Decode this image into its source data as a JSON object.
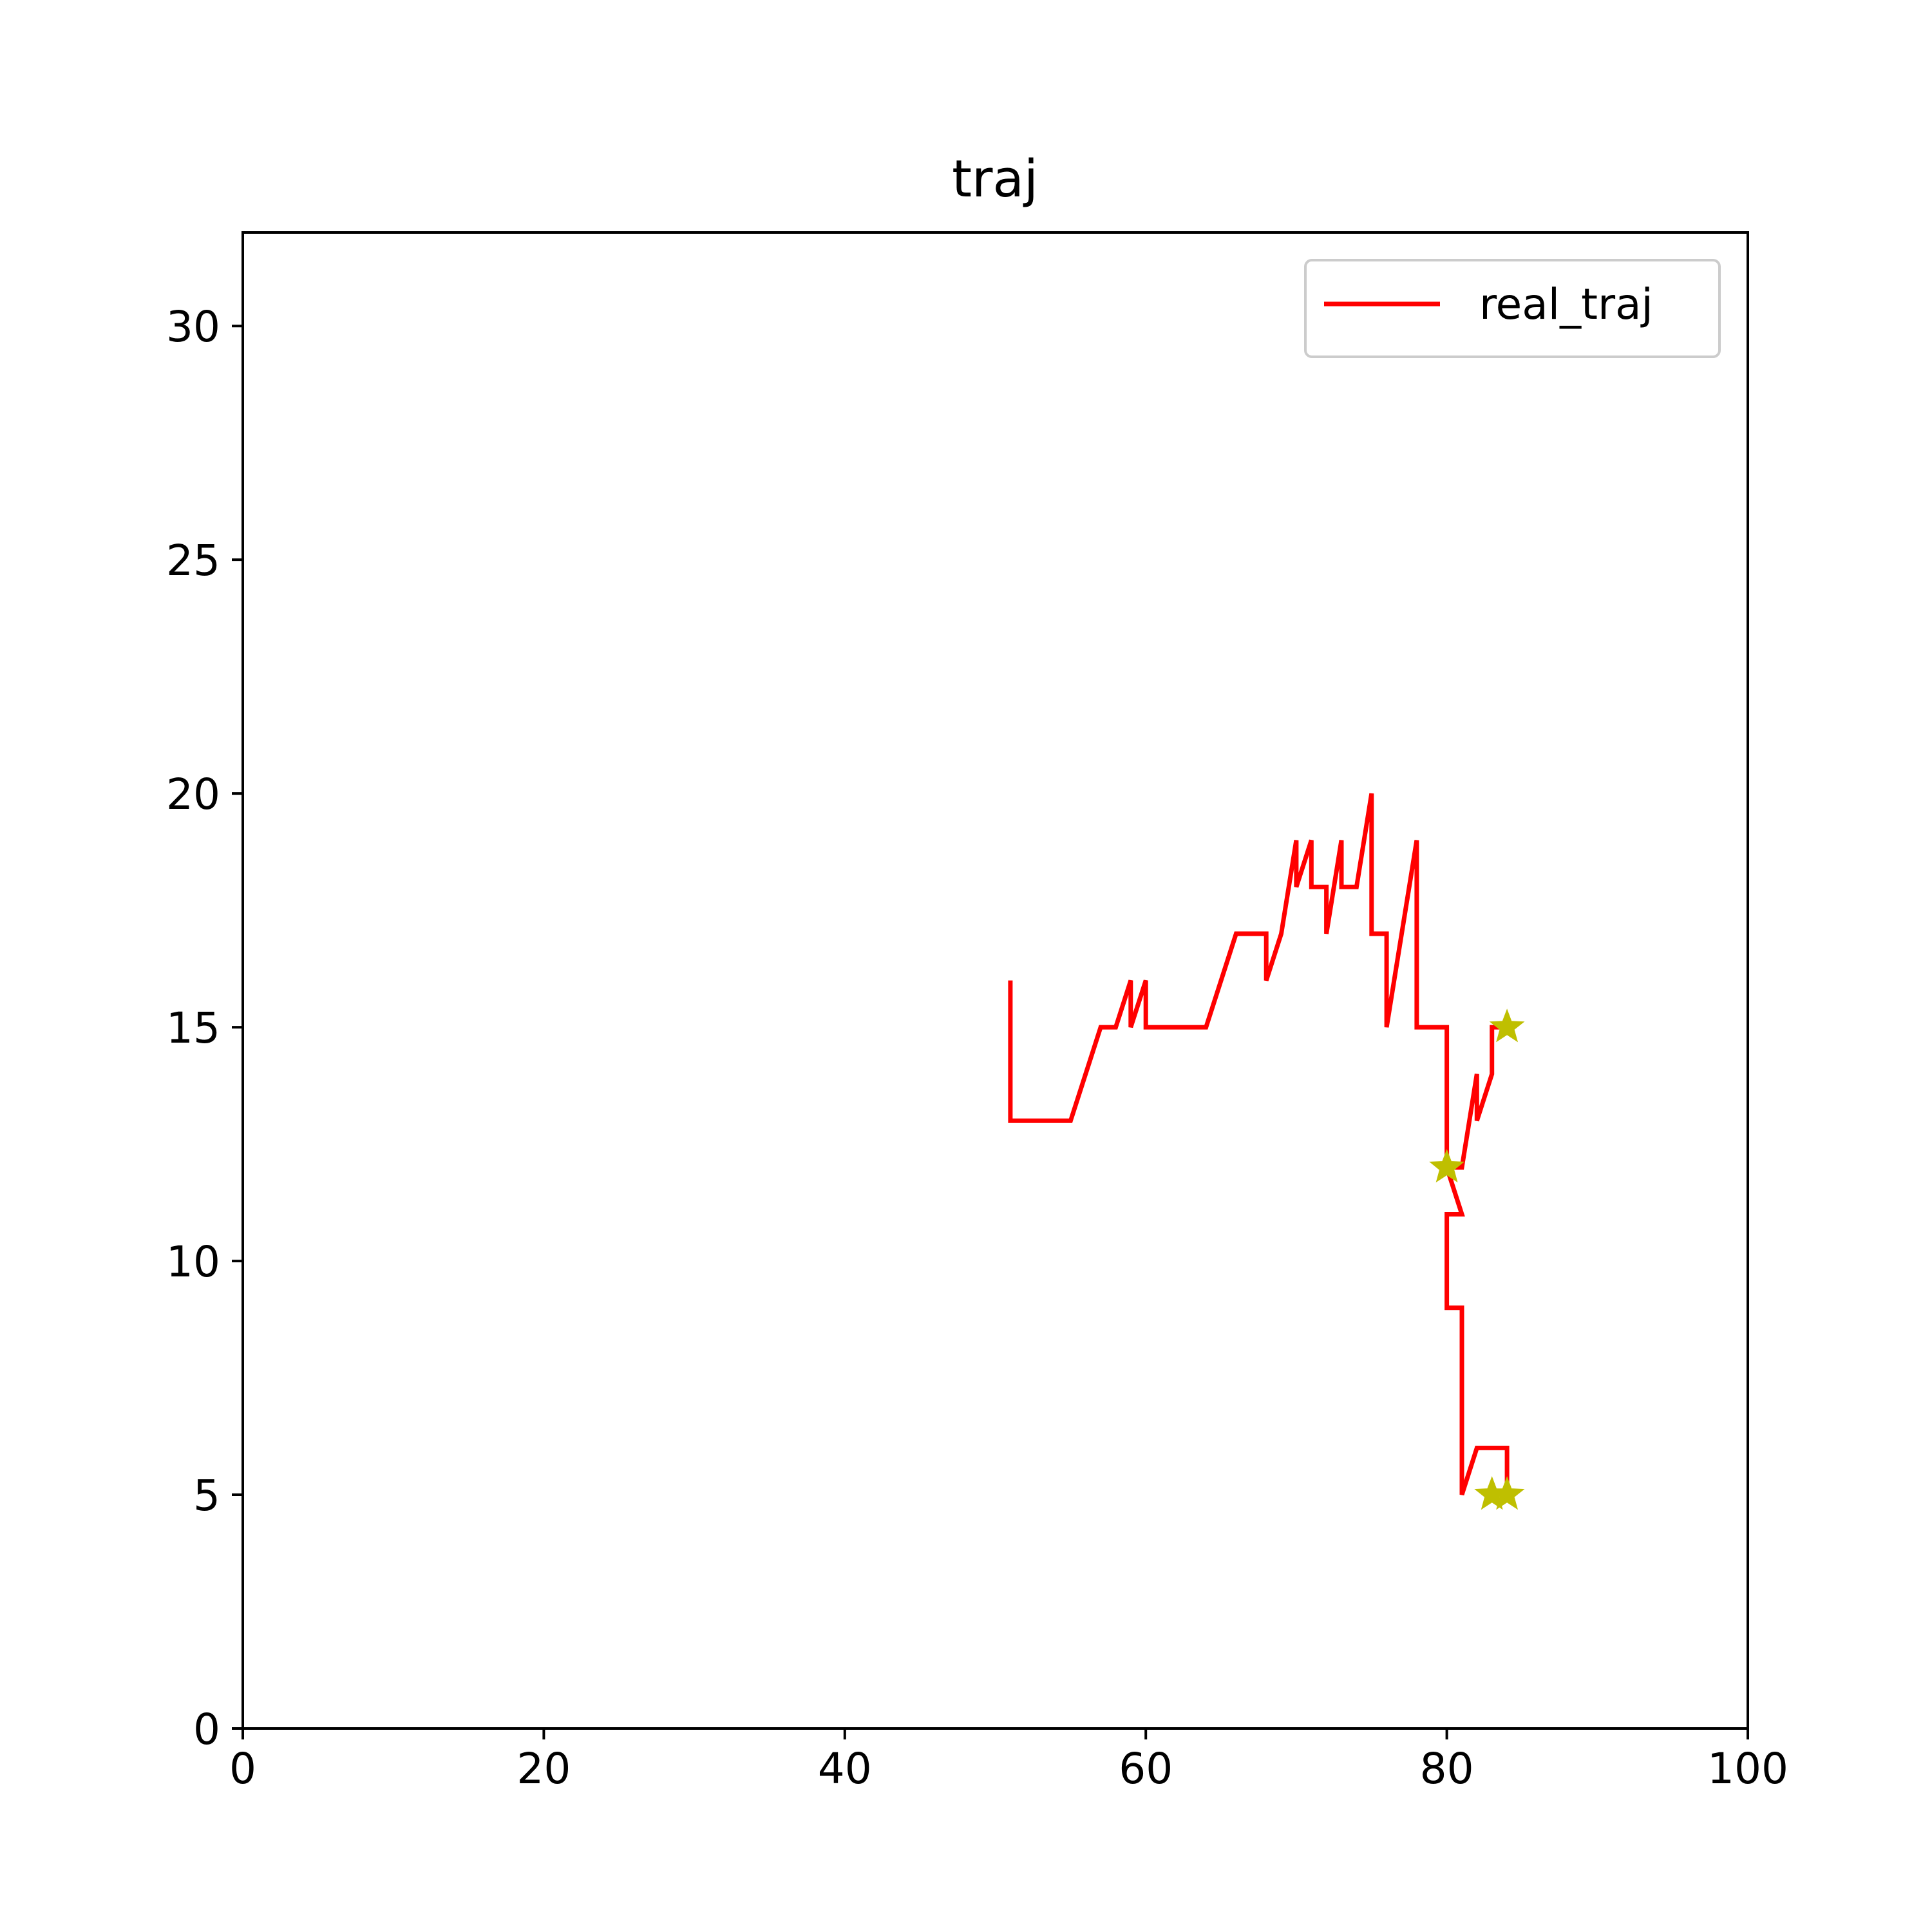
{
  "chart_data": {
    "type": "line",
    "title": "traj",
    "xlabel": "",
    "ylabel": "",
    "xlim": [
      0,
      100
    ],
    "ylim": [
      0,
      32
    ],
    "x_ticks": [
      "0",
      "20",
      "40",
      "60",
      "80",
      "100"
    ],
    "y_ticks": [
      "0",
      "5",
      "10",
      "15",
      "20",
      "25",
      "30"
    ],
    "grid": false,
    "legend": {
      "position": "top-right",
      "entries": [
        "real_traj"
      ]
    },
    "series": [
      {
        "name": "real_traj",
        "color": "#ff0000",
        "x": [
          51,
          51,
          55,
          57,
          58,
          59,
          59,
          60,
          60,
          64,
          66,
          68,
          68,
          69,
          70,
          70,
          71,
          71,
          72,
          72,
          73,
          73,
          74,
          75,
          75,
          76,
          76,
          78,
          78,
          80,
          80,
          81,
          80,
          80,
          81,
          81,
          82,
          82,
          83,
          83,
          84,
          84,
          83,
          83,
          84
        ],
        "y": [
          16,
          13,
          13,
          15,
          15,
          16,
          15,
          16,
          15,
          15,
          17,
          17,
          16,
          17,
          19,
          18,
          19,
          18,
          18,
          17,
          19,
          18,
          18,
          20,
          17,
          17,
          15,
          19,
          15,
          15,
          12,
          11,
          11,
          9,
          9,
          5,
          6,
          6,
          6,
          6,
          6,
          5,
          5,
          5,
          5
        ]
      },
      {
        "name": "",
        "color": "#ff0000",
        "x": [
          80,
          81,
          82,
          82,
          83,
          83,
          84,
          84,
          83,
          84
        ],
        "y": [
          12,
          12,
          14,
          13,
          14,
          15,
          15,
          15,
          15,
          15
        ]
      }
    ],
    "markers": {
      "color": "#bfbf00",
      "symbol": "star",
      "points": [
        {
          "x": 84,
          "y": 15
        },
        {
          "x": 80,
          "y": 12
        },
        {
          "x": 83,
          "y": 5
        },
        {
          "x": 84,
          "y": 5
        }
      ]
    }
  }
}
